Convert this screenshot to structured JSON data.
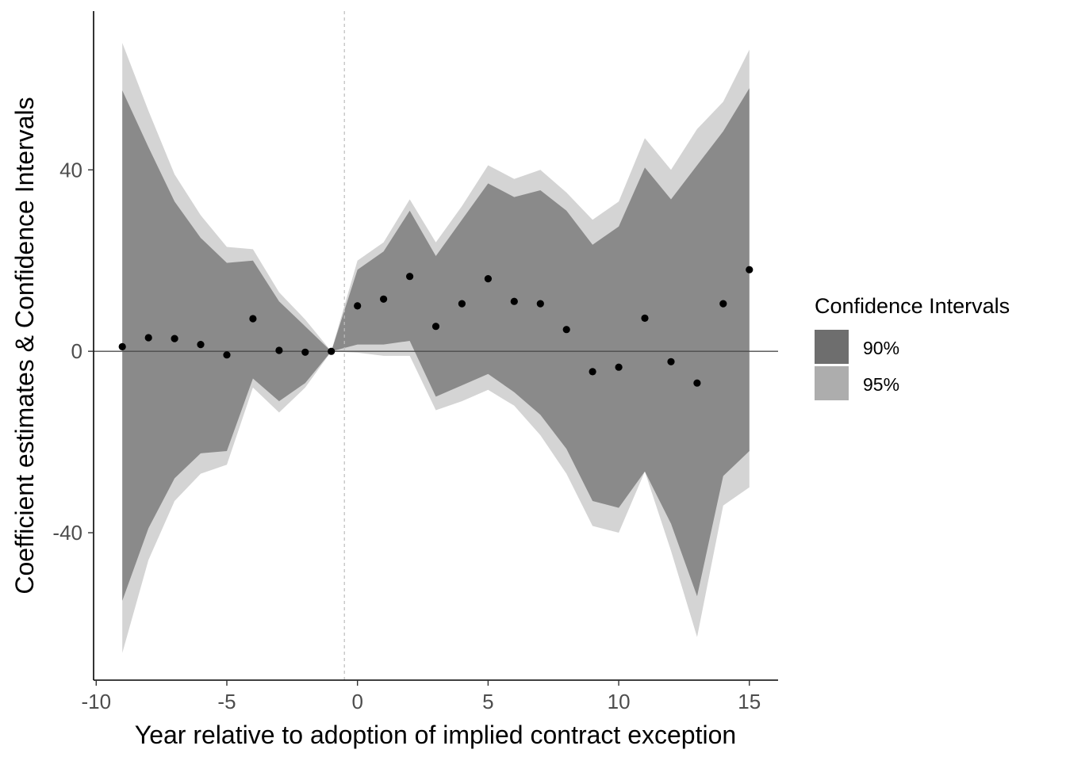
{
  "chart_data": {
    "type": "area",
    "xlabel": "Year relative to adoption of implied contract exception",
    "ylabel": "Coefficient estimates & Confidence Intervals",
    "xlim": [
      -10.1,
      16.1
    ],
    "ylim": [
      -72.5,
      75
    ],
    "x_ticks": [
      -10,
      -5,
      0,
      5,
      10,
      15
    ],
    "x_tick_labels": [
      "-10",
      "-5",
      "0",
      "5",
      "10",
      "15"
    ],
    "y_ticks": [
      -40,
      0,
      40
    ],
    "y_tick_labels": [
      "-40",
      "0",
      "40"
    ],
    "hline": 0,
    "vline": -0.5,
    "grid": false,
    "legend": {
      "title": "Confidence Intervals",
      "placement": "right",
      "items": [
        {
          "label": "90%",
          "color": "#6e6e6e"
        },
        {
          "label": "95%",
          "color": "#adadad"
        }
      ]
    },
    "colors": {
      "band90": "#8a8a8a",
      "band95": "#d4d4d4",
      "point": "#000000",
      "hline": "#4d4d4d",
      "vline": "#bdbdbd"
    },
    "series": [
      {
        "name": "95%",
        "x": [
          -9,
          -8,
          -7,
          -6,
          -5,
          -4,
          -3,
          -2,
          -1,
          0,
          1,
          2,
          3,
          4,
          5,
          6,
          7,
          8,
          9,
          10,
          11,
          12,
          13,
          14,
          15
        ],
        "upper": [
          68,
          53,
          39,
          30,
          23,
          22.5,
          13,
          7,
          0,
          20,
          24,
          33.5,
          24,
          32,
          41,
          38,
          40,
          35,
          29,
          33,
          47,
          40,
          49,
          55,
          66.5
        ],
        "lower": [
          -66.5,
          -46,
          -33,
          -27,
          -25,
          -8,
          -13.5,
          -8,
          0,
          -0.3,
          -1,
          -1,
          -13,
          -11,
          -8.5,
          -12,
          -18.5,
          -27,
          -38.5,
          -40,
          -26.5,
          -44,
          -63,
          -34,
          -30
        ]
      },
      {
        "name": "90%",
        "x": [
          -9,
          -8,
          -7,
          -6,
          -5,
          -4,
          -3,
          -2,
          -1,
          0,
          1,
          2,
          3,
          4,
          5,
          6,
          7,
          8,
          9,
          10,
          11,
          12,
          13,
          14,
          15
        ],
        "upper": [
          57.5,
          45,
          33,
          25,
          19.5,
          20,
          11,
          5.5,
          0,
          18,
          22,
          31,
          21,
          29,
          37,
          34,
          35.5,
          31,
          23.5,
          27.5,
          40.5,
          33.5,
          41,
          48.5,
          58
        ],
        "lower": [
          -55,
          -39,
          -28,
          -22.5,
          -22,
          -6,
          -11,
          -7,
          0,
          1.5,
          1.5,
          2.3,
          -10,
          -7.5,
          -5,
          -9,
          -14,
          -21.5,
          -33,
          -34.5,
          -26.5,
          -38,
          -54,
          -27.5,
          -22
        ]
      },
      {
        "name": "",
        "x": [
          -9,
          -8,
          -7,
          -6,
          -5,
          -4,
          -3,
          -2,
          -1,
          0,
          1,
          2,
          3,
          4,
          5,
          6,
          7,
          8,
          9,
          10,
          11,
          12,
          13,
          14,
          15
        ],
        "values": [
          1,
          3,
          2.8,
          1.5,
          -0.8,
          7.2,
          0.2,
          -0.2,
          0,
          10,
          11.5,
          16.5,
          5.5,
          10.5,
          16,
          11,
          10.5,
          4.8,
          -4.5,
          -3.5,
          7.3,
          -2.3,
          -7,
          10.5,
          18
        ]
      }
    ]
  }
}
